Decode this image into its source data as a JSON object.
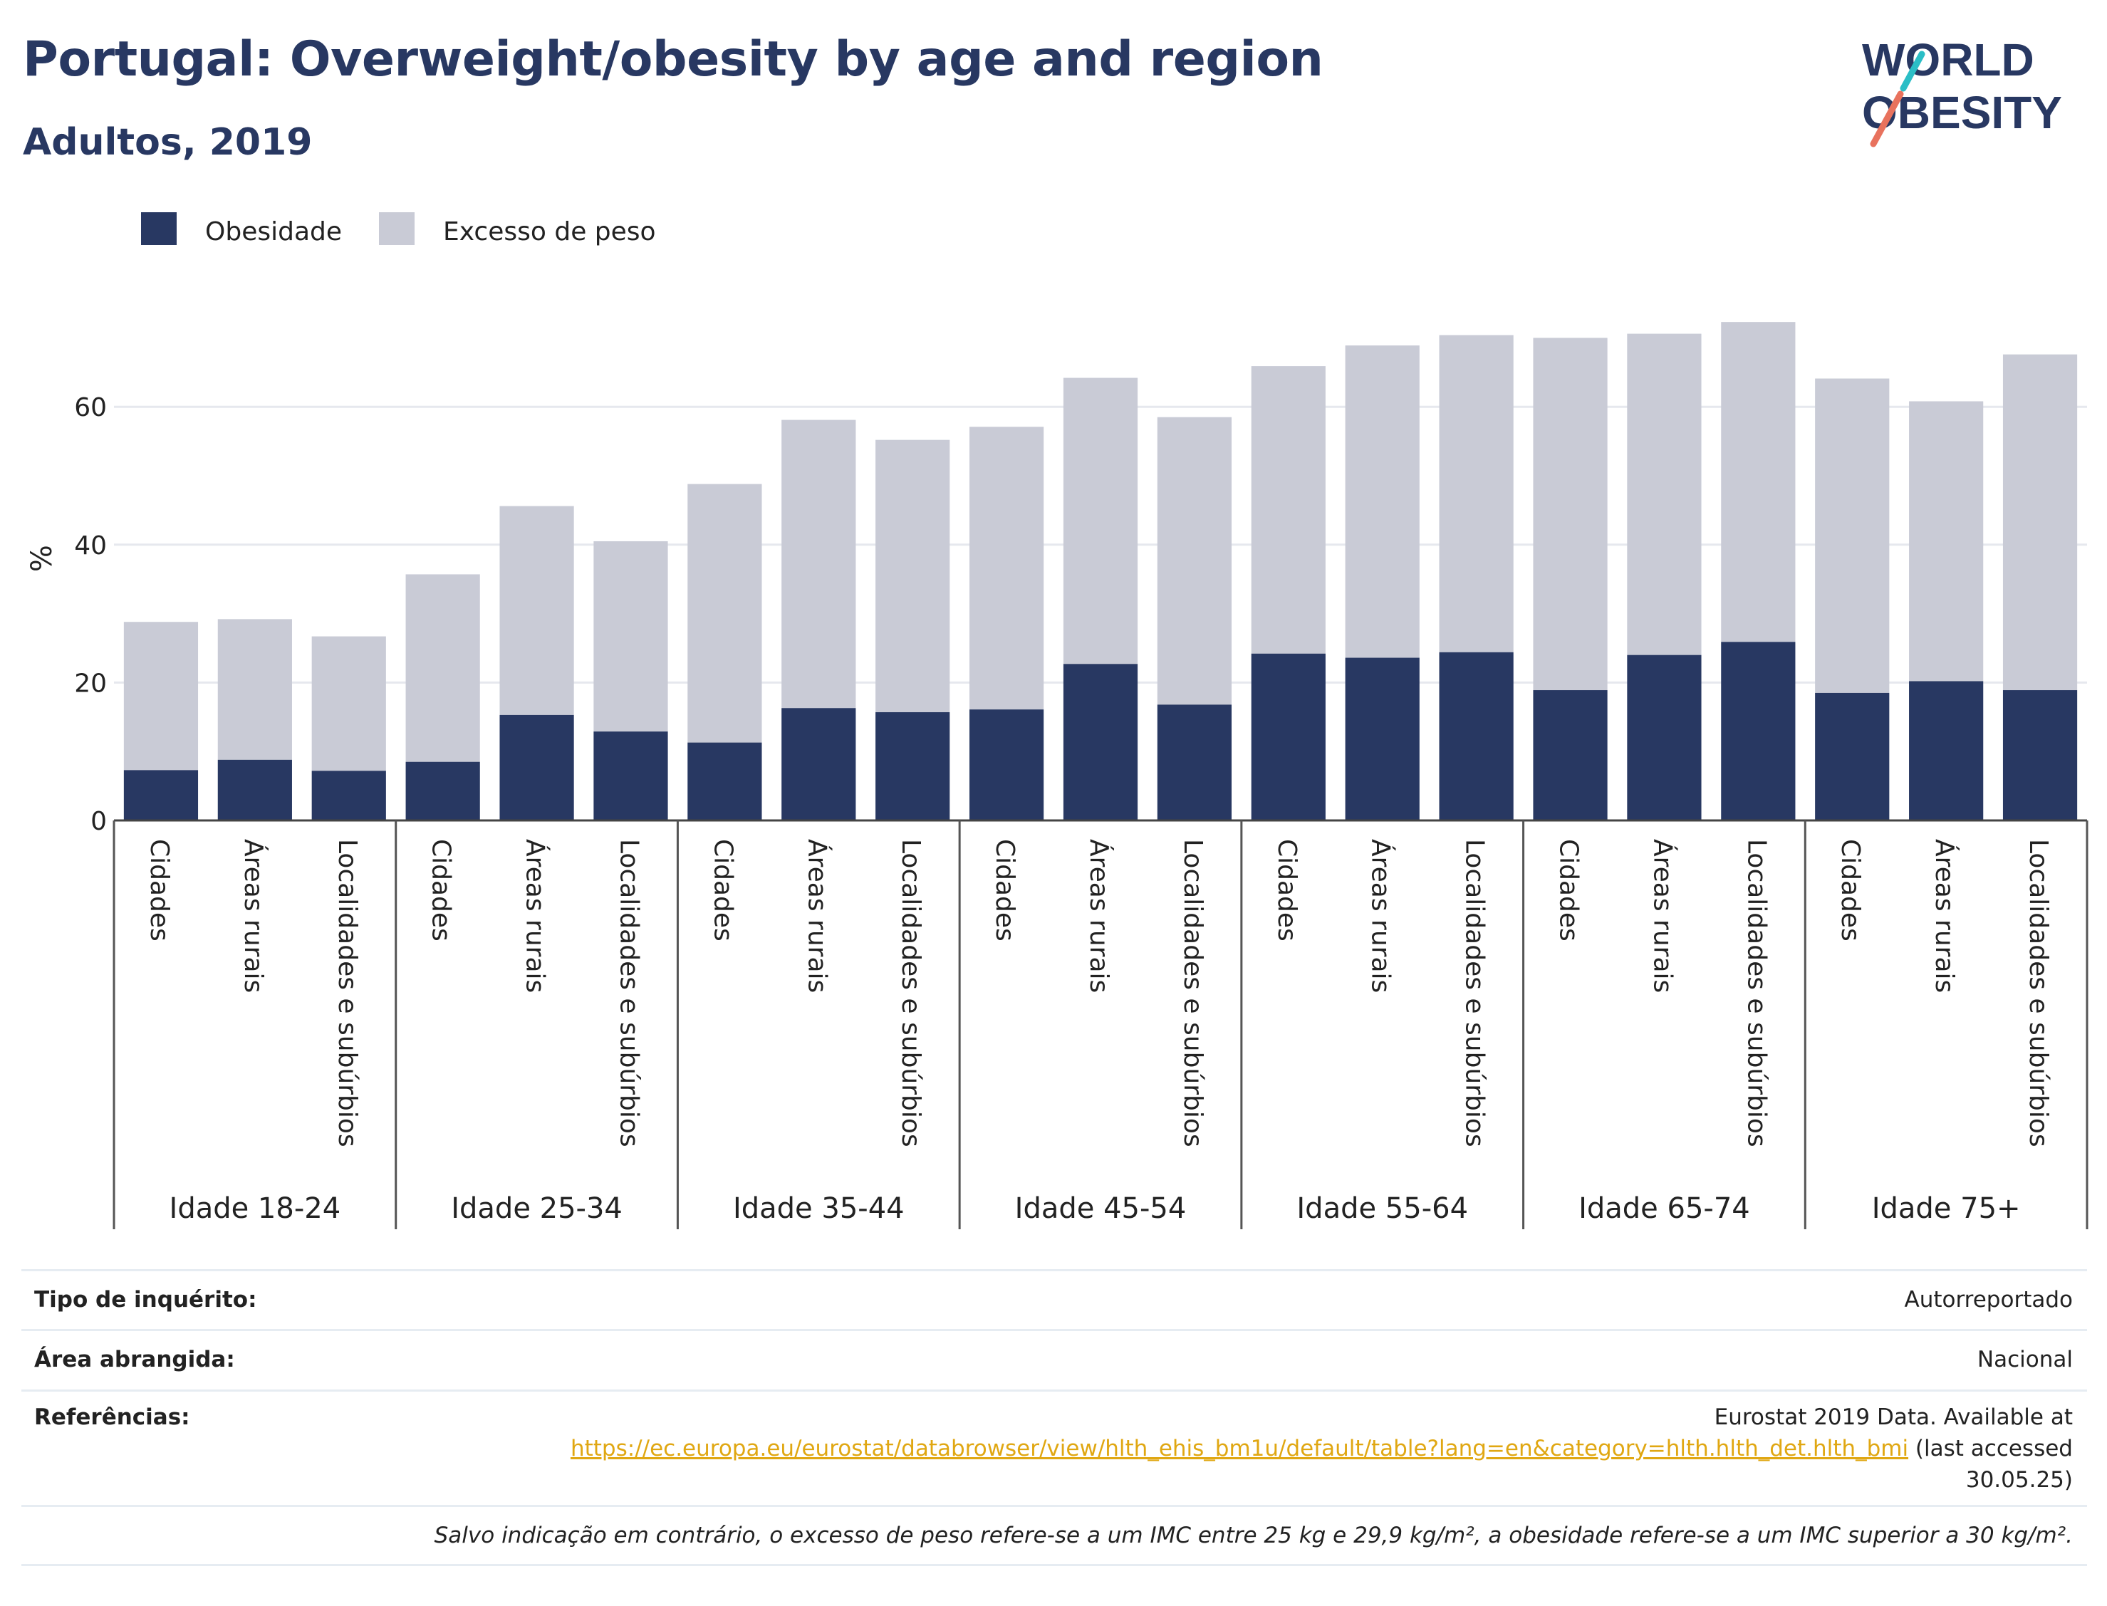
{
  "title": "Portugal: Overweight/obesity by age and region",
  "subtitle": "Adultos, 2019",
  "logo": {
    "line1": "WORLD",
    "line2": "OBESITY"
  },
  "chart_data": {
    "type": "bar",
    "stacked": true,
    "ylabel": "%",
    "ylim": [
      0,
      75
    ],
    "yticks": [
      0,
      20,
      40,
      60
    ],
    "grid": true,
    "legend_position": "top-left",
    "groups": [
      "Idade 18-24",
      "Idade 25-34",
      "Idade 35-44",
      "Idade 45-54",
      "Idade 55-64",
      "Idade 65-74",
      "Idade 75+"
    ],
    "subcategories": [
      "Cidades",
      "Áreas rurais",
      "Localidades e subúrbios"
    ],
    "series": [
      {
        "name": "Obesidade",
        "color": "#283862",
        "values": [
          7.3,
          8.8,
          7.2,
          8.5,
          15.3,
          12.9,
          11.3,
          16.3,
          15.7,
          16.1,
          22.7,
          16.8,
          24.2,
          23.6,
          24.4,
          18.9,
          24.0,
          25.9,
          18.5,
          20.2,
          18.9
        ]
      },
      {
        "name": "Excesso de peso",
        "color": "#c9cbd6",
        "values": [
          21.5,
          20.4,
          19.5,
          27.2,
          30.3,
          27.6,
          37.5,
          41.8,
          39.5,
          41.0,
          41.5,
          41.7,
          41.7,
          45.3,
          46.0,
          51.1,
          46.6,
          46.4,
          45.6,
          40.6,
          48.7
        ]
      }
    ]
  },
  "info": {
    "survey_label": "Tipo de inquérito:",
    "survey_value": "Autorreportado",
    "area_label": "Área abrangida:",
    "area_value": "Nacional",
    "refs_label": "Referências:",
    "refs_line1": "Eurostat 2019 Data. Available at",
    "refs_link": "https://ec.europa.eu/eurostat/databrowser/view/hlth_ehis_bm1u/default/table?lang=en&category=hlth.hlth_det.hlth_bmi",
    "refs_after": " (last accessed",
    "refs_line3": "30.05.25)",
    "note": "Salvo indicação em contrário, o excesso de peso refere-se a um IMC entre 25 kg e 29,9 kg/m², a obesidade refere-se a um IMC superior a 30 kg/m²."
  },
  "colors": {
    "accent": "#283862",
    "light": "#c9cbd6",
    "link": "#e0a712",
    "logo_teal": "#2bbec6",
    "logo_coral": "#e8725d"
  }
}
